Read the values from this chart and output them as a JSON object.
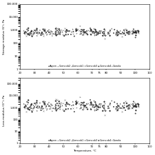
{
  "ylabel1": "Storage modulus (G'), Pa",
  "ylabel2": "Loss modulus (G''), Pa",
  "xlabel": "Temperature, °C",
  "xlim": [
    20,
    110
  ],
  "xticks": [
    20,
    30,
    40,
    50,
    60,
    70,
    75,
    80,
    90,
    100,
    110
  ],
  "ylim1": [
    1,
    100000
  ],
  "ylim2": [
    1,
    300000
  ],
  "legend_labels": [
    "Aspen",
    "Corncob2",
    "Corncob1",
    "Corncob3",
    "Corncob4",
    "Canola"
  ],
  "legend_markers": [
    "o",
    "^",
    "x",
    "s",
    "D",
    ">"
  ],
  "background_color": "#ffffff",
  "n_points": 50,
  "seed": 42,
  "storage_mean_log": 6.5,
  "storage_sigma": 0.35,
  "loss_mean_log": 7.2,
  "loss_sigma": 0.55
}
